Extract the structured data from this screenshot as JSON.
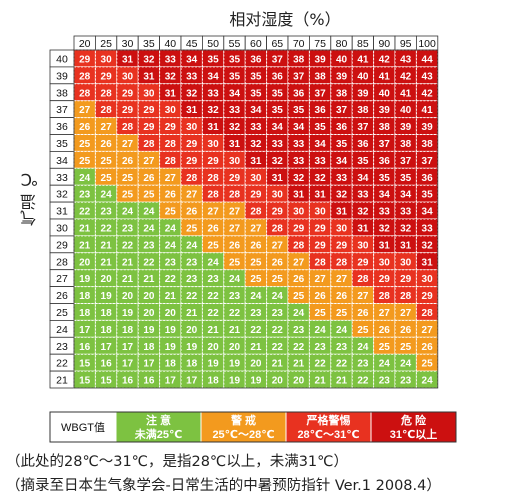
{
  "chart_data": {
    "type": "heatmap",
    "xlabel": "相对湿度（%）",
    "ylabel": "气温 ℃",
    "x": [
      20,
      25,
      30,
      35,
      40,
      45,
      50,
      55,
      60,
      65,
      70,
      75,
      80,
      85,
      90,
      95,
      100
    ],
    "y": [
      40,
      39,
      38,
      37,
      36,
      35,
      34,
      33,
      32,
      31,
      30,
      29,
      28,
      27,
      26,
      25,
      24,
      23,
      22,
      21
    ],
    "values": [
      [
        29,
        30,
        31,
        32,
        33,
        34,
        35,
        35,
        36,
        37,
        38,
        39,
        40,
        41,
        42,
        43,
        44
      ],
      [
        28,
        29,
        30,
        31,
        32,
        33,
        34,
        35,
        35,
        36,
        37,
        38,
        39,
        40,
        41,
        42,
        43
      ],
      [
        28,
        28,
        29,
        30,
        31,
        32,
        33,
        34,
        35,
        35,
        36,
        37,
        38,
        39,
        40,
        41,
        42
      ],
      [
        27,
        28,
        29,
        29,
        30,
        31,
        32,
        33,
        34,
        35,
        35,
        36,
        37,
        38,
        39,
        40,
        41
      ],
      [
        26,
        27,
        28,
        29,
        29,
        30,
        31,
        32,
        33,
        34,
        34,
        35,
        36,
        37,
        38,
        39,
        39
      ],
      [
        25,
        26,
        27,
        28,
        28,
        29,
        30,
        31,
        32,
        33,
        33,
        34,
        35,
        36,
        37,
        38,
        38
      ],
      [
        25,
        25,
        26,
        27,
        28,
        29,
        29,
        30,
        31,
        32,
        33,
        33,
        34,
        35,
        36,
        37,
        37
      ],
      [
        24,
        25,
        25,
        26,
        27,
        28,
        28,
        29,
        30,
        31,
        32,
        32,
        33,
        34,
        35,
        35,
        36
      ],
      [
        23,
        24,
        25,
        25,
        26,
        27,
        28,
        28,
        29,
        30,
        31,
        31,
        32,
        33,
        34,
        34,
        35
      ],
      [
        22,
        23,
        24,
        24,
        25,
        26,
        27,
        27,
        28,
        29,
        30,
        30,
        31,
        32,
        33,
        33,
        34
      ],
      [
        21,
        22,
        23,
        24,
        24,
        25,
        26,
        27,
        27,
        28,
        29,
        29,
        30,
        31,
        32,
        32,
        33
      ],
      [
        21,
        21,
        22,
        23,
        24,
        24,
        25,
        26,
        26,
        27,
        28,
        29,
        29,
        30,
        31,
        31,
        32
      ],
      [
        20,
        21,
        21,
        22,
        23,
        23,
        24,
        25,
        25,
        26,
        27,
        28,
        28,
        29,
        30,
        30,
        31
      ],
      [
        19,
        20,
        21,
        21,
        22,
        23,
        23,
        24,
        25,
        25,
        26,
        27,
        27,
        28,
        29,
        29,
        30
      ],
      [
        18,
        19,
        20,
        20,
        21,
        22,
        22,
        23,
        24,
        24,
        25,
        26,
        26,
        27,
        28,
        28,
        29
      ],
      [
        18,
        18,
        19,
        20,
        20,
        21,
        22,
        22,
        23,
        23,
        24,
        25,
        25,
        26,
        27,
        27,
        28
      ],
      [
        17,
        18,
        18,
        19,
        19,
        20,
        21,
        21,
        22,
        22,
        23,
        24,
        24,
        25,
        26,
        26,
        27
      ],
      [
        16,
        17,
        17,
        18,
        19,
        19,
        20,
        20,
        21,
        22,
        22,
        23,
        23,
        24,
        25,
        25,
        26
      ],
      [
        15,
        16,
        17,
        17,
        18,
        18,
        19,
        19,
        20,
        21,
        21,
        22,
        22,
        23,
        24,
        24,
        25
      ],
      [
        15,
        15,
        16,
        16,
        17,
        17,
        18,
        19,
        19,
        20,
        20,
        21,
        21,
        22,
        23,
        23,
        24
      ]
    ],
    "categories_rule": [
      {
        "min": 31,
        "color": "#cc1010",
        "label": "危  险",
        "sub": "31℃以上"
      },
      {
        "min": 28,
        "color": "#e83220",
        "label": "严格警惕",
        "sub": "28℃～31℃"
      },
      {
        "min": 25,
        "color": "#f39a1e",
        "label": "警  戒",
        "sub": "25℃～28℃"
      },
      {
        "min": 0,
        "color": "#7dc241",
        "label": "注  意",
        "sub": "未满25℃"
      }
    ],
    "legend_title": "WBGT值",
    "grid": true,
    "footnotes": [
      "（此处的28℃～31℃，是指28℃以上，未满31℃）",
      "（摘录至日本生气象学会-日常生活的中暑预防指针 Ver.1 2008.4）"
    ]
  }
}
